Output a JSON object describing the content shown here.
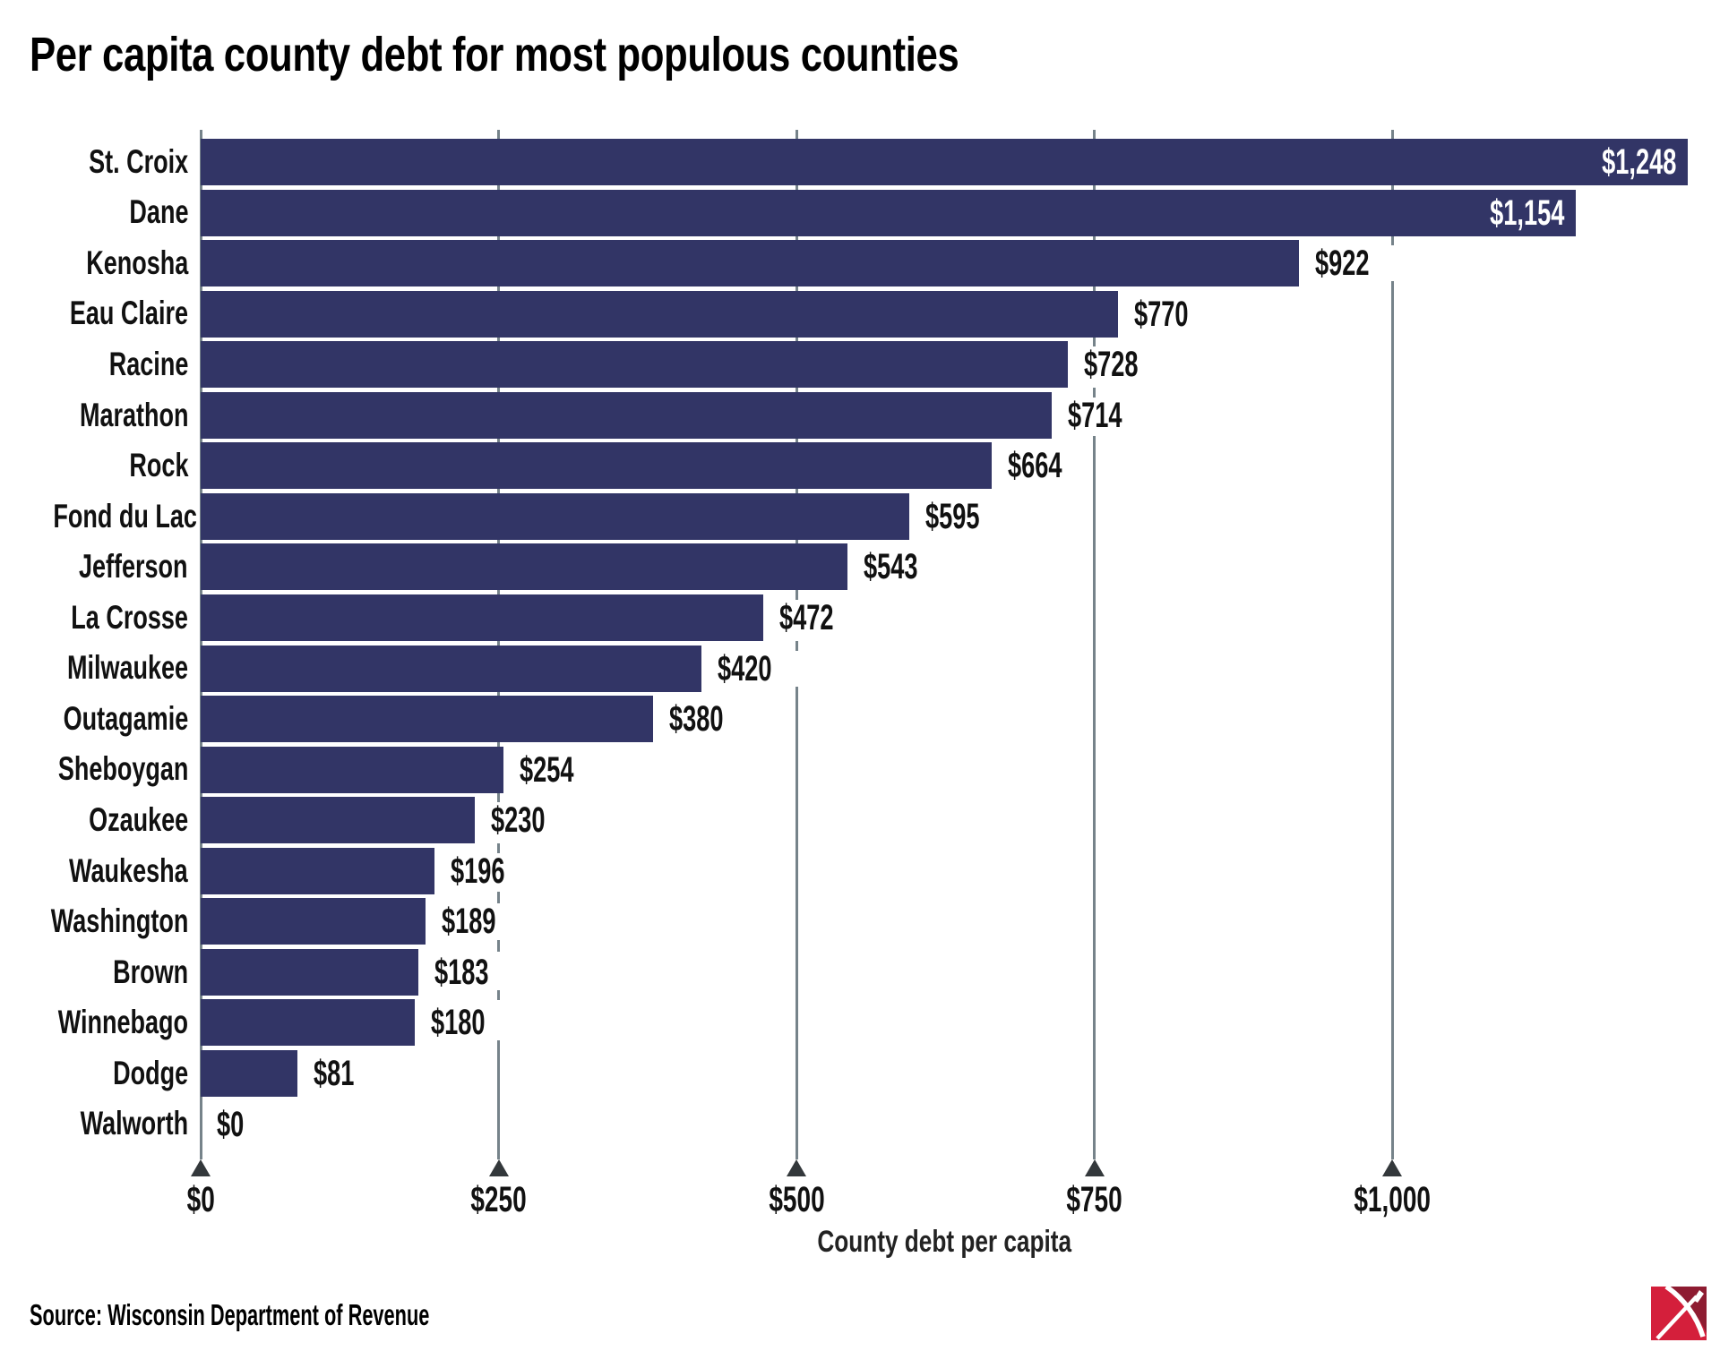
{
  "title": "Per capita county debt for most populous counties",
  "source": "Source: Wisconsin Department of Revenue",
  "colors": {
    "bar": "#323566",
    "gridline": "#76838a",
    "axis_marker": "#33383b",
    "logo_bright_red": "#d41f3b",
    "logo_dark_red": "#8e1c31"
  },
  "chart_data": {
    "type": "bar",
    "orientation": "horizontal",
    "title": "Per capita county debt for most populous counties",
    "categories": [
      "St. Croix",
      "Dane",
      "Kenosha",
      "Eau Claire",
      "Racine",
      "Marathon",
      "Rock",
      "Fond du Lac",
      "Jefferson",
      "La Crosse",
      "Milwaukee",
      "Outagamie",
      "Sheboygan",
      "Ozaukee",
      "Waukesha",
      "Washington",
      "Brown",
      "Winnebago",
      "Dodge",
      "Walworth"
    ],
    "values": [
      1248,
      1154,
      922,
      770,
      728,
      714,
      664,
      595,
      543,
      472,
      420,
      380,
      254,
      230,
      196,
      189,
      183,
      180,
      81,
      0
    ],
    "value_labels": [
      "$1,248",
      "$1,154",
      "$922",
      "$770",
      "$728",
      "$714",
      "$664",
      "$595",
      "$543",
      "$472",
      "$420",
      "$380",
      "$254",
      "$230",
      "$196",
      "$189",
      "$183",
      "$180",
      "$81",
      "$0"
    ],
    "labels_inside": [
      true,
      true,
      false,
      false,
      false,
      false,
      false,
      false,
      false,
      false,
      false,
      false,
      false,
      false,
      false,
      false,
      false,
      false,
      false,
      false
    ],
    "xlabel": "County debt per capita",
    "x_ticks": [
      "$0",
      "$250",
      "$500",
      "$750",
      "$1,000"
    ],
    "x_tick_values": [
      0,
      250,
      500,
      750,
      1000
    ],
    "xlim": [
      0,
      1250
    ],
    "grid": "vertical",
    "legend": "none"
  },
  "logo": {
    "name": "pickaxe-logo"
  }
}
